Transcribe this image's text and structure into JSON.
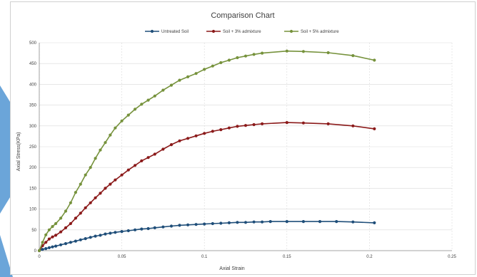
{
  "chart_data": {
    "type": "line",
    "title": "Comparison Chart",
    "xlabel": "Axial Strain",
    "ylabel": "Axial Stress(KPa)",
    "xlim": [
      0,
      0.25
    ],
    "ylim": [
      0,
      500
    ],
    "x_ticks": [
      "0",
      "0.05",
      "0.1",
      "0.15",
      "0.2",
      "0.25"
    ],
    "y_ticks": [
      "0",
      "50",
      "100",
      "150",
      "200",
      "250",
      "300",
      "350",
      "400",
      "450",
      "500"
    ],
    "grid": true,
    "legend_position": "top",
    "series": [
      {
        "name": "Untreated Soil",
        "color": "#1f4e79",
        "x": [
          0,
          0.002,
          0.004,
          0.006,
          0.008,
          0.01,
          0.013,
          0.016,
          0.019,
          0.022,
          0.025,
          0.028,
          0.031,
          0.034,
          0.037,
          0.04,
          0.043,
          0.046,
          0.05,
          0.054,
          0.058,
          0.062,
          0.066,
          0.07,
          0.075,
          0.08,
          0.085,
          0.09,
          0.095,
          0.1,
          0.105,
          0.11,
          0.115,
          0.12,
          0.125,
          0.13,
          0.135,
          0.14,
          0.15,
          0.16,
          0.17,
          0.18,
          0.19,
          0.203
        ],
        "y": [
          0,
          3,
          5,
          7,
          9,
          11,
          14,
          17,
          20,
          23,
          26,
          29,
          32,
          35,
          37,
          40,
          42,
          44,
          46,
          48,
          50,
          52,
          53,
          55,
          57,
          59,
          61,
          62,
          63,
          64,
          65,
          66,
          67,
          68,
          68,
          69,
          69,
          70,
          70,
          70,
          70,
          70,
          69,
          67
        ]
      },
      {
        "name": "Soil + 3% admixture",
        "color": "#8b1a1a",
        "x": [
          0,
          0.002,
          0.004,
          0.006,
          0.008,
          0.01,
          0.013,
          0.016,
          0.019,
          0.022,
          0.025,
          0.028,
          0.031,
          0.034,
          0.037,
          0.04,
          0.043,
          0.046,
          0.05,
          0.054,
          0.058,
          0.062,
          0.066,
          0.07,
          0.075,
          0.08,
          0.085,
          0.09,
          0.095,
          0.1,
          0.105,
          0.11,
          0.115,
          0.12,
          0.125,
          0.13,
          0.135,
          0.15,
          0.16,
          0.175,
          0.19,
          0.203
        ],
        "y": [
          0,
          12,
          20,
          28,
          33,
          37,
          45,
          55,
          65,
          78,
          90,
          103,
          115,
          127,
          138,
          150,
          160,
          170,
          182,
          194,
          205,
          216,
          224,
          232,
          244,
          255,
          264,
          270,
          276,
          282,
          287,
          291,
          295,
          299,
          301,
          303,
          305,
          308,
          307,
          305,
          300,
          293
        ]
      },
      {
        "name": "Soil + 5% admixture",
        "color": "#76923c",
        "x": [
          0,
          0.002,
          0.004,
          0.006,
          0.008,
          0.01,
          0.013,
          0.016,
          0.019,
          0.022,
          0.025,
          0.028,
          0.031,
          0.034,
          0.037,
          0.04,
          0.043,
          0.046,
          0.05,
          0.054,
          0.058,
          0.062,
          0.066,
          0.07,
          0.075,
          0.08,
          0.085,
          0.09,
          0.095,
          0.1,
          0.105,
          0.11,
          0.115,
          0.12,
          0.125,
          0.13,
          0.135,
          0.15,
          0.16,
          0.175,
          0.19,
          0.203
        ],
        "y": [
          0,
          20,
          38,
          50,
          58,
          65,
          78,
          95,
          115,
          140,
          160,
          182,
          200,
          222,
          242,
          260,
          278,
          295,
          312,
          326,
          340,
          352,
          362,
          372,
          386,
          398,
          410,
          418,
          426,
          436,
          444,
          452,
          458,
          464,
          468,
          472,
          475,
          480,
          479,
          476,
          469,
          458
        ]
      }
    ]
  }
}
